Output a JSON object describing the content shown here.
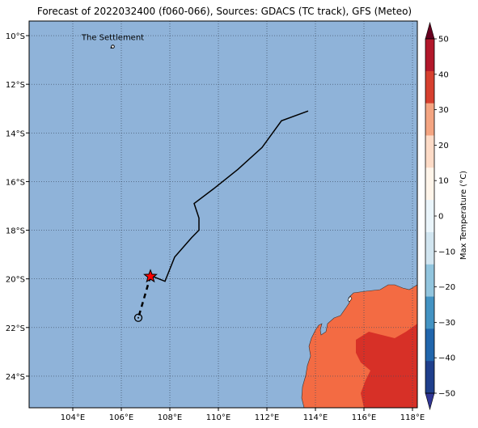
{
  "title": "Forecast of 2022032400 (f060-066), Sources: GDACS (TC track), GFS (Meteo)",
  "map": {
    "lon_range": [
      102.2,
      118.2
    ],
    "lat_range": [
      -25.3,
      -9.4
    ],
    "ocean_color": "#8fb3d9",
    "land_color": "#f36b43",
    "land_hot_color": "#d73027",
    "lon_ticks": [
      "104°E",
      "106°E",
      "108°E",
      "110°E",
      "112°E",
      "114°E",
      "116°E",
      "118°E"
    ],
    "lat_ticks": [
      "10°S",
      "12°S",
      "14°S",
      "16°S",
      "18°S",
      "20°S",
      "22°S",
      "24°S"
    ],
    "place": {
      "name": "The Settlement",
      "lon": 105.65,
      "lat": -10.45
    },
    "track_observed": [
      [
        113.7,
        -13.1
      ],
      [
        112.6,
        -13.5
      ],
      [
        111.8,
        -14.6
      ],
      [
        110.8,
        -15.5
      ],
      [
        109.8,
        -16.3
      ],
      [
        109.0,
        -16.9
      ],
      [
        109.2,
        -17.5
      ],
      [
        109.2,
        -18.0
      ],
      [
        108.9,
        -18.3
      ],
      [
        108.2,
        -19.1
      ],
      [
        107.8,
        -20.1
      ],
      [
        107.3,
        -19.9
      ]
    ],
    "track_forecast": [
      [
        107.2,
        -19.9
      ],
      [
        106.7,
        -21.6
      ]
    ],
    "current_position": {
      "lon": 107.2,
      "lat": -19.9,
      "marker": "star-icon"
    },
    "forecast_position": {
      "lon": 106.7,
      "lat": -21.6,
      "marker": "circle-dot-icon"
    }
  },
  "colorbar": {
    "label": "Max Temperature (°C)",
    "ticks": [
      "50",
      "40",
      "30",
      "20",
      "10",
      "0",
      "−10",
      "−20",
      "−30",
      "−40",
      "−50"
    ],
    "colors": [
      "#67001f",
      "#b2182b",
      "#d6402f",
      "#f4a582",
      "#fddbc7",
      "#fff5ea",
      "#eaf5fb",
      "#d1e5f0",
      "#92c5de",
      "#4393c3",
      "#2166ac",
      "#1f3f8c",
      "#313695"
    ]
  }
}
